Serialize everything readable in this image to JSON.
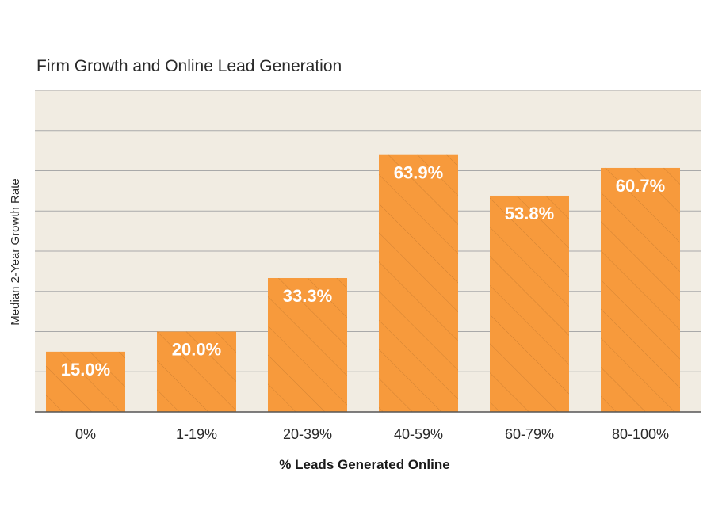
{
  "chart_data": {
    "type": "bar",
    "title": "Firm Growth and Online Lead Generation",
    "xlabel": "% Leads Generated Online",
    "ylabel": "Median 2-Year Growth Rate",
    "categories": [
      "0%",
      "1-19%",
      "20-39%",
      "40-59%",
      "60-79%",
      "80-100%"
    ],
    "values": [
      15.0,
      20.0,
      33.3,
      63.9,
      53.8,
      60.7
    ],
    "value_labels": [
      "15.0%",
      "20.0%",
      "33.3%",
      "63.9%",
      "53.8%",
      "60.7%"
    ],
    "ylim": [
      0,
      80
    ],
    "grid": true,
    "gridline_step": 10,
    "bar_color": "#f79a3c",
    "plot_background": "#f1ece2",
    "grid_color": "#a9a9a9"
  }
}
